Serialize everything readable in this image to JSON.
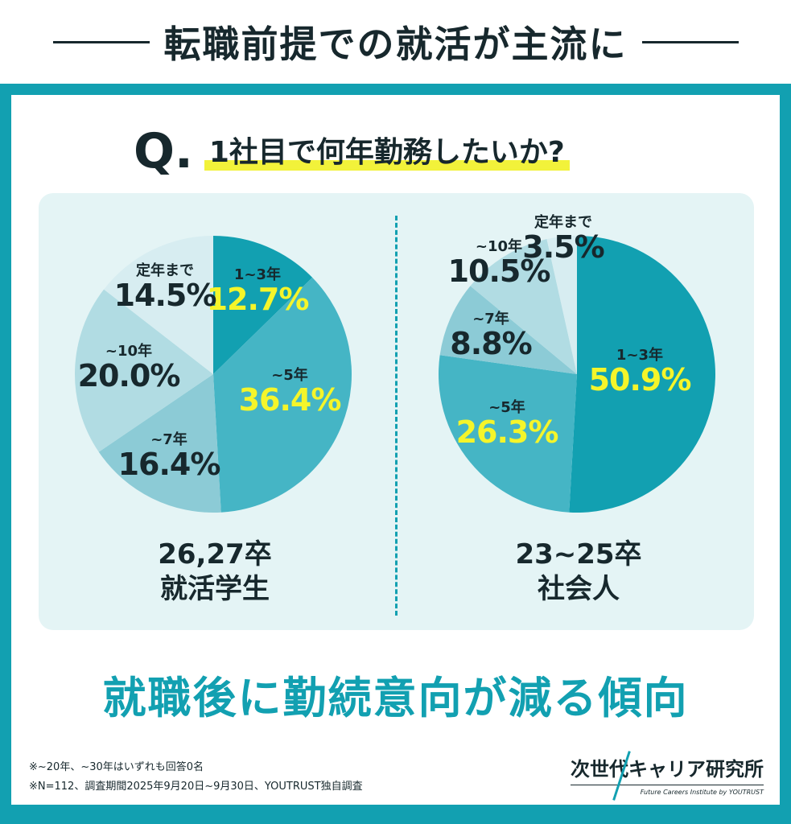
{
  "header": {
    "title": "転職前提での就活が主流に"
  },
  "question": {
    "mark": "Q.",
    "text": "1社目で何年勤務したいか?"
  },
  "chart_data": [
    {
      "type": "pie",
      "group_label": [
        "26,27卒",
        "就活学生"
      ],
      "categories": [
        "1~3年",
        "~5年",
        "~7年",
        "~10年",
        "定年まで"
      ],
      "values": [
        12.7,
        36.4,
        16.4,
        20.0,
        14.5
      ],
      "value_labels": [
        "12.7%",
        "36.4%",
        "16.4%",
        "20.0%",
        "14.5%"
      ],
      "colors": [
        "#12a0b1",
        "#45b5c5",
        "#8ccbd6",
        "#b1dce3",
        "#d7edf1"
      ]
    },
    {
      "type": "pie",
      "group_label": [
        "23~25卒",
        "社会人"
      ],
      "categories": [
        "1~3年",
        "~5年",
        "~7年",
        "~10年",
        "定年まで"
      ],
      "values": [
        50.9,
        26.3,
        8.8,
        10.5,
        3.5
      ],
      "value_labels": [
        "50.9%",
        "26.3%",
        "8.8%",
        "10.5%",
        "3.5%"
      ],
      "colors": [
        "#12a0b1",
        "#45b5c5",
        "#8ccbd6",
        "#b1dce3",
        "#d7edf1"
      ]
    }
  ],
  "highlight_color": "#f5f52a",
  "headline": "就職後に勤続意向が減る傾向",
  "notes": [
    "※~20年、~30年はいずれも回答0名",
    "※N=112、調査期間2025年9月20日~9月30日、YOUTRUST独自調査"
  ],
  "logo": {
    "title": "次世代キャリア研究所",
    "subtitle": "Future Careers Institute by YOUTRUST"
  }
}
